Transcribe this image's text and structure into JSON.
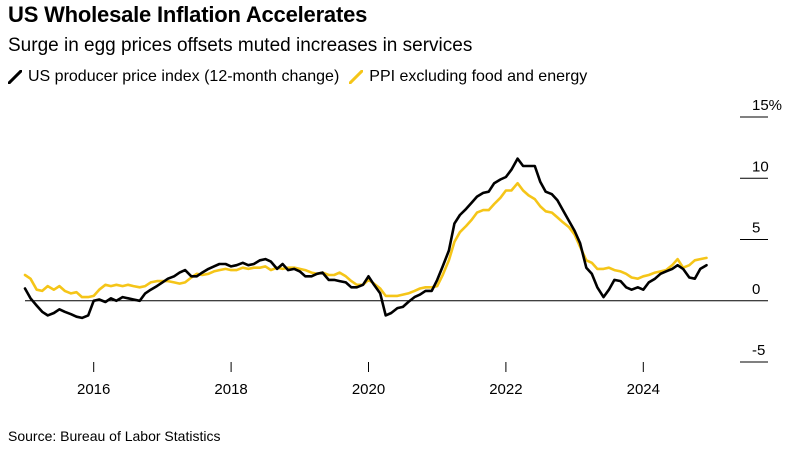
{
  "header": {
    "title": "US Wholesale Inflation Accelerates",
    "subtitle": "Surge in egg prices offsets muted increases in services"
  },
  "source": "Source: Bureau of Labor Statistics",
  "chart_data": {
    "type": "line",
    "title": "US Wholesale Inflation Accelerates",
    "subtitle": "Surge in egg prices offsets muted increases in services",
    "xlabel": "",
    "ylabel": "",
    "ylim": [
      -5,
      15
    ],
    "xlim": [
      2015.0,
      2025.0
    ],
    "y_ticks": [
      {
        "value": 15,
        "label": "15%"
      },
      {
        "value": 10,
        "label": "10"
      },
      {
        "value": 5,
        "label": "5"
      },
      {
        "value": 0,
        "label": "0"
      },
      {
        "value": -5,
        "label": "-5"
      }
    ],
    "x_ticks": [
      {
        "value": 2016,
        "label": "2016"
      },
      {
        "value": 2018,
        "label": "2018"
      },
      {
        "value": 2020,
        "label": "2020"
      },
      {
        "value": 2022,
        "label": "2022"
      },
      {
        "value": 2024,
        "label": "2024"
      }
    ],
    "legend_position": "top-left",
    "series": [
      {
        "name": "US producer price index (12-month change)",
        "color": "#000000",
        "points": [
          [
            2015.0,
            1.0
          ],
          [
            2015.08,
            0.2
          ],
          [
            2015.17,
            -0.4
          ],
          [
            2015.25,
            -0.9
          ],
          [
            2015.33,
            -1.2
          ],
          [
            2015.42,
            -1.0
          ],
          [
            2015.5,
            -0.7
          ],
          [
            2015.58,
            -0.9
          ],
          [
            2015.67,
            -1.1
          ],
          [
            2015.75,
            -1.3
          ],
          [
            2015.83,
            -1.4
          ],
          [
            2015.92,
            -1.2
          ],
          [
            2016.0,
            0.0
          ],
          [
            2016.08,
            0.1
          ],
          [
            2016.17,
            -0.1
          ],
          [
            2016.25,
            0.2
          ],
          [
            2016.33,
            0.0
          ],
          [
            2016.42,
            0.3
          ],
          [
            2016.5,
            0.2
          ],
          [
            2016.58,
            0.1
          ],
          [
            2016.67,
            0.0
          ],
          [
            2016.75,
            0.6
          ],
          [
            2016.83,
            0.9
          ],
          [
            2016.92,
            1.2
          ],
          [
            2017.0,
            1.5
          ],
          [
            2017.08,
            1.8
          ],
          [
            2017.17,
            2.0
          ],
          [
            2017.25,
            2.3
          ],
          [
            2017.33,
            2.5
          ],
          [
            2017.42,
            2.0
          ],
          [
            2017.5,
            2.0
          ],
          [
            2017.58,
            2.3
          ],
          [
            2017.67,
            2.6
          ],
          [
            2017.75,
            2.8
          ],
          [
            2017.83,
            3.0
          ],
          [
            2017.92,
            3.0
          ],
          [
            2018.0,
            2.8
          ],
          [
            2018.08,
            2.9
          ],
          [
            2018.17,
            3.1
          ],
          [
            2018.25,
            2.9
          ],
          [
            2018.33,
            3.0
          ],
          [
            2018.42,
            3.3
          ],
          [
            2018.5,
            3.4
          ],
          [
            2018.58,
            3.2
          ],
          [
            2018.67,
            2.6
          ],
          [
            2018.75,
            3.0
          ],
          [
            2018.83,
            2.5
          ],
          [
            2018.92,
            2.6
          ],
          [
            2019.0,
            2.4
          ],
          [
            2019.08,
            2.0
          ],
          [
            2019.17,
            2.0
          ],
          [
            2019.25,
            2.2
          ],
          [
            2019.33,
            2.3
          ],
          [
            2019.42,
            1.7
          ],
          [
            2019.5,
            1.7
          ],
          [
            2019.58,
            1.6
          ],
          [
            2019.67,
            1.5
          ],
          [
            2019.75,
            1.1
          ],
          [
            2019.83,
            1.1
          ],
          [
            2019.92,
            1.3
          ],
          [
            2020.0,
            2.0
          ],
          [
            2020.08,
            1.3
          ],
          [
            2020.17,
            0.6
          ],
          [
            2020.25,
            -1.2
          ],
          [
            2020.33,
            -1.0
          ],
          [
            2020.42,
            -0.6
          ],
          [
            2020.5,
            -0.5
          ],
          [
            2020.58,
            -0.1
          ],
          [
            2020.67,
            0.3
          ],
          [
            2020.75,
            0.5
          ],
          [
            2020.83,
            0.8
          ],
          [
            2020.92,
            0.8
          ],
          [
            2021.0,
            1.7
          ],
          [
            2021.08,
            2.8
          ],
          [
            2021.17,
            4.1
          ],
          [
            2021.25,
            6.3
          ],
          [
            2021.33,
            7.0
          ],
          [
            2021.42,
            7.5
          ],
          [
            2021.5,
            8.0
          ],
          [
            2021.58,
            8.5
          ],
          [
            2021.67,
            8.8
          ],
          [
            2021.75,
            8.9
          ],
          [
            2021.83,
            9.6
          ],
          [
            2021.92,
            9.9
          ],
          [
            2022.0,
            10.1
          ],
          [
            2022.08,
            10.7
          ],
          [
            2022.17,
            11.6
          ],
          [
            2022.25,
            11.0
          ],
          [
            2022.33,
            11.0
          ],
          [
            2022.42,
            11.0
          ],
          [
            2022.5,
            9.7
          ],
          [
            2022.58,
            8.9
          ],
          [
            2022.67,
            8.7
          ],
          [
            2022.75,
            8.2
          ],
          [
            2022.83,
            7.4
          ],
          [
            2022.92,
            6.5
          ],
          [
            2023.0,
            5.7
          ],
          [
            2023.08,
            4.7
          ],
          [
            2023.17,
            2.7
          ],
          [
            2023.25,
            2.2
          ],
          [
            2023.33,
            1.1
          ],
          [
            2023.42,
            0.3
          ],
          [
            2023.5,
            0.9
          ],
          [
            2023.58,
            1.7
          ],
          [
            2023.67,
            1.6
          ],
          [
            2023.75,
            1.1
          ],
          [
            2023.83,
            0.9
          ],
          [
            2023.92,
            1.1
          ],
          [
            2024.0,
            0.9
          ],
          [
            2024.08,
            1.5
          ],
          [
            2024.17,
            1.8
          ],
          [
            2024.25,
            2.2
          ],
          [
            2024.33,
            2.4
          ],
          [
            2024.42,
            2.6
          ],
          [
            2024.5,
            2.9
          ],
          [
            2024.58,
            2.6
          ],
          [
            2024.67,
            1.9
          ],
          [
            2024.75,
            1.8
          ],
          [
            2024.83,
            2.6
          ],
          [
            2024.92,
            2.9
          ]
        ]
      },
      {
        "name": "PPI excluding food and energy",
        "color": "#f5c518",
        "points": [
          [
            2015.0,
            2.1
          ],
          [
            2015.08,
            1.8
          ],
          [
            2015.17,
            0.9
          ],
          [
            2015.25,
            0.8
          ],
          [
            2015.33,
            1.2
          ],
          [
            2015.42,
            0.9
          ],
          [
            2015.5,
            1.2
          ],
          [
            2015.58,
            0.8
          ],
          [
            2015.67,
            0.6
          ],
          [
            2015.75,
            0.7
          ],
          [
            2015.83,
            0.3
          ],
          [
            2015.92,
            0.3
          ],
          [
            2016.0,
            0.4
          ],
          [
            2016.08,
            0.9
          ],
          [
            2016.17,
            1.3
          ],
          [
            2016.25,
            1.2
          ],
          [
            2016.33,
            1.3
          ],
          [
            2016.42,
            1.2
          ],
          [
            2016.5,
            1.3
          ],
          [
            2016.58,
            1.2
          ],
          [
            2016.67,
            1.1
          ],
          [
            2016.75,
            1.2
          ],
          [
            2016.83,
            1.5
          ],
          [
            2016.92,
            1.6
          ],
          [
            2017.0,
            1.6
          ],
          [
            2017.08,
            1.6
          ],
          [
            2017.17,
            1.5
          ],
          [
            2017.25,
            1.4
          ],
          [
            2017.33,
            1.5
          ],
          [
            2017.42,
            1.9
          ],
          [
            2017.5,
            2.2
          ],
          [
            2017.58,
            2.1
          ],
          [
            2017.67,
            2.2
          ],
          [
            2017.75,
            2.4
          ],
          [
            2017.83,
            2.5
          ],
          [
            2017.92,
            2.6
          ],
          [
            2018.0,
            2.5
          ],
          [
            2018.08,
            2.5
          ],
          [
            2018.17,
            2.7
          ],
          [
            2018.25,
            2.6
          ],
          [
            2018.33,
            2.7
          ],
          [
            2018.42,
            2.7
          ],
          [
            2018.5,
            2.8
          ],
          [
            2018.58,
            2.5
          ],
          [
            2018.67,
            2.7
          ],
          [
            2018.75,
            2.6
          ],
          [
            2018.83,
            2.7
          ],
          [
            2018.92,
            2.7
          ],
          [
            2019.0,
            2.6
          ],
          [
            2019.08,
            2.5
          ],
          [
            2019.17,
            2.3
          ],
          [
            2019.25,
            2.2
          ],
          [
            2019.33,
            2.3
          ],
          [
            2019.42,
            2.1
          ],
          [
            2019.5,
            2.1
          ],
          [
            2019.58,
            2.3
          ],
          [
            2019.67,
            2.0
          ],
          [
            2019.75,
            1.6
          ],
          [
            2019.83,
            1.3
          ],
          [
            2019.92,
            1.3
          ],
          [
            2020.0,
            1.7
          ],
          [
            2020.08,
            1.4
          ],
          [
            2020.17,
            1.0
          ],
          [
            2020.25,
            0.4
          ],
          [
            2020.33,
            0.4
          ],
          [
            2020.42,
            0.4
          ],
          [
            2020.5,
            0.5
          ],
          [
            2020.58,
            0.6
          ],
          [
            2020.67,
            0.8
          ],
          [
            2020.75,
            1.0
          ],
          [
            2020.83,
            1.1
          ],
          [
            2020.92,
            1.1
          ],
          [
            2021.0,
            1.2
          ],
          [
            2021.08,
            2.1
          ],
          [
            2021.17,
            3.3
          ],
          [
            2021.25,
            4.8
          ],
          [
            2021.33,
            5.6
          ],
          [
            2021.42,
            6.1
          ],
          [
            2021.5,
            6.6
          ],
          [
            2021.58,
            7.2
          ],
          [
            2021.67,
            7.4
          ],
          [
            2021.75,
            7.4
          ],
          [
            2021.83,
            7.9
          ],
          [
            2021.92,
            8.4
          ],
          [
            2022.0,
            9.0
          ],
          [
            2022.08,
            9.0
          ],
          [
            2022.17,
            9.6
          ],
          [
            2022.25,
            9.0
          ],
          [
            2022.33,
            8.6
          ],
          [
            2022.42,
            8.3
          ],
          [
            2022.5,
            7.7
          ],
          [
            2022.58,
            7.3
          ],
          [
            2022.67,
            7.2
          ],
          [
            2022.75,
            6.8
          ],
          [
            2022.83,
            6.4
          ],
          [
            2022.92,
            6.0
          ],
          [
            2023.0,
            5.4
          ],
          [
            2023.08,
            4.4
          ],
          [
            2023.17,
            3.3
          ],
          [
            2023.25,
            3.1
          ],
          [
            2023.33,
            2.6
          ],
          [
            2023.42,
            2.6
          ],
          [
            2023.5,
            2.7
          ],
          [
            2023.58,
            2.5
          ],
          [
            2023.67,
            2.4
          ],
          [
            2023.75,
            2.2
          ],
          [
            2023.83,
            1.9
          ],
          [
            2023.92,
            1.8
          ],
          [
            2024.0,
            2.0
          ],
          [
            2024.08,
            2.1
          ],
          [
            2024.17,
            2.3
          ],
          [
            2024.25,
            2.4
          ],
          [
            2024.33,
            2.5
          ],
          [
            2024.42,
            2.9
          ],
          [
            2024.5,
            3.4
          ],
          [
            2024.58,
            2.7
          ],
          [
            2024.67,
            2.9
          ],
          [
            2024.75,
            3.3
          ],
          [
            2024.83,
            3.4
          ],
          [
            2024.92,
            3.5
          ]
        ]
      }
    ]
  }
}
